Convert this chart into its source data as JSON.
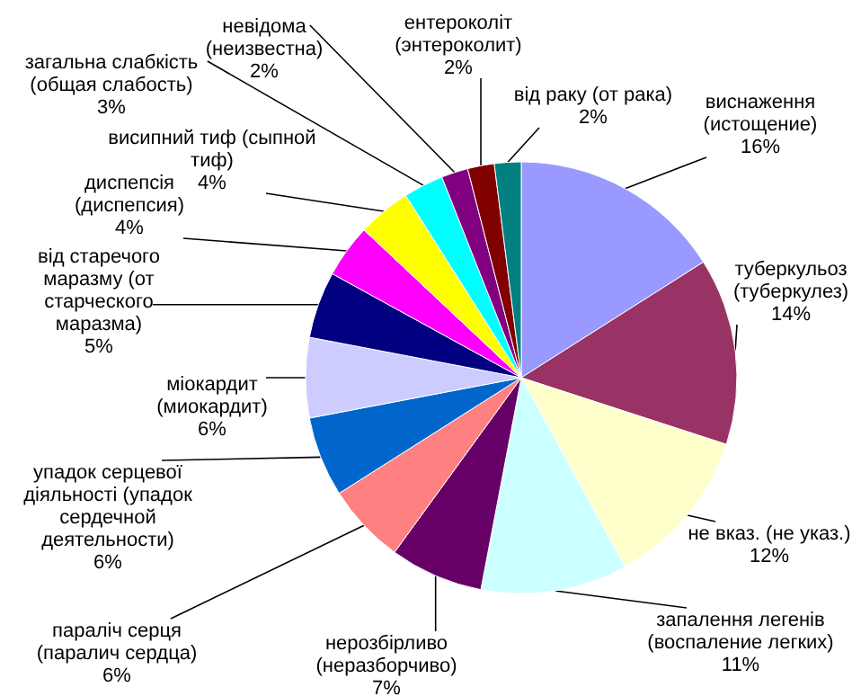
{
  "chart_data": {
    "type": "pie",
    "categories": [
      "виснаження (истощение)",
      "туберкульоз (туберкулез)",
      "не вказ. (не указ.)",
      "запалення легенів (воспаление легких)",
      "нерозбірливо (неразборчиво)",
      "параліч серця (паралич сердца)",
      "упадок серцевої діяльності (упадок сердечной деятельности)",
      "міокардит (миокардит)",
      "від старечого маразму (от старческого маразма)",
      "диспепсія (диспепсия)",
      "висипний тиф (сыпной тиф)",
      "загальна слабкість (общая слабость)",
      "невідома (неизвестна)",
      "ентероколіт (энтероколит)",
      "від раку (от рака)"
    ],
    "values": [
      16,
      14,
      12,
      11,
      7,
      6,
      6,
      6,
      5,
      4,
      4,
      3,
      2,
      2,
      2
    ],
    "value_labels": [
      "16%",
      "14%",
      "12%",
      "11%",
      "7%",
      "6%",
      "6%",
      "6%",
      "5%",
      "4%",
      "4%",
      "3%",
      "2%",
      "2%",
      "2%"
    ],
    "colors": [
      "#9999ff",
      "#993366",
      "#ffffcc",
      "#ccffff",
      "#660066",
      "#ff8080",
      "#0066cc",
      "#ccccff",
      "#000080",
      "#ff00ff",
      "#ffff00",
      "#00ffff",
      "#800080",
      "#800000",
      "#008080"
    ],
    "legend": false
  }
}
